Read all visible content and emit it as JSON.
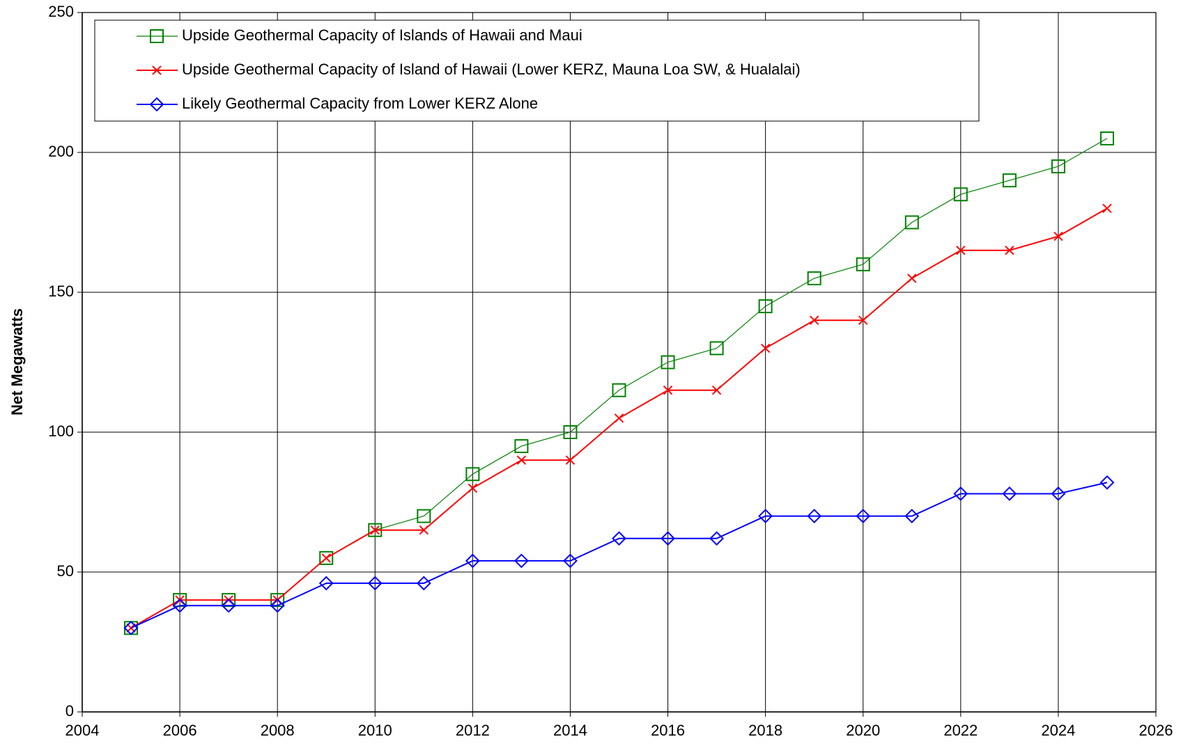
{
  "chart_data": {
    "type": "line",
    "y_label": "Net Megawatts",
    "x": [
      2005,
      2006,
      2007,
      2008,
      2009,
      2010,
      2011,
      2012,
      2013,
      2014,
      2015,
      2016,
      2017,
      2018,
      2019,
      2020,
      2021,
      2022,
      2023,
      2024,
      2025
    ],
    "series": [
      {
        "name": "Upside Geothermal Capacity of Islands of Hawaii and Maui",
        "color": "#008000",
        "marker": "square",
        "values": [
          30,
          40,
          40,
          40,
          55,
          65,
          70,
          85,
          95,
          100,
          115,
          125,
          130,
          145,
          155,
          160,
          175,
          185,
          190,
          195,
          205
        ]
      },
      {
        "name": "Upside Geothermal Capacity of Island of Hawaii (Lower KERZ, Mauna Loa SW, & Hualalai)",
        "color": "#ff0000",
        "marker": "x",
        "values": [
          30,
          40,
          40,
          40,
          55,
          65,
          65,
          80,
          90,
          90,
          105,
          115,
          115,
          130,
          140,
          140,
          155,
          165,
          165,
          170,
          180
        ]
      },
      {
        "name": "Likely Geothermal Capacity from Lower KERZ Alone",
        "color": "#0000ff",
        "marker": "diamond",
        "values": [
          30,
          38,
          38,
          38,
          46,
          46,
          46,
          54,
          54,
          54,
          62,
          62,
          62,
          70,
          70,
          70,
          70,
          78,
          78,
          78,
          82
        ]
      }
    ],
    "xlim": [
      2004,
      2026
    ],
    "xticks": [
      2004,
      2006,
      2008,
      2010,
      2012,
      2014,
      2016,
      2018,
      2020,
      2022,
      2024,
      2026
    ],
    "ylim": [
      0,
      250
    ],
    "yticks": [
      0,
      50,
      100,
      150,
      200,
      250
    ],
    "grid": true,
    "legend": "top-left"
  }
}
